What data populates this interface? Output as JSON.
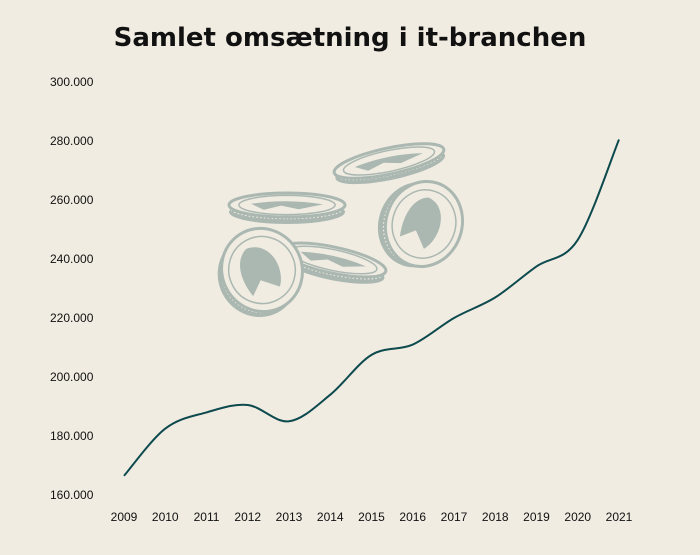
{
  "chart_data": {
    "type": "line",
    "title": "Samlet omsætning i it-branchen",
    "xlabel": "",
    "ylabel": "",
    "x": [
      "2009",
      "2010",
      "2011",
      "2012",
      "2013",
      "2014",
      "2015",
      "2016",
      "2017",
      "2018",
      "2019",
      "2020",
      "2021"
    ],
    "series": [
      {
        "values": [
          166500,
          182500,
          188000,
          190500,
          185000,
          194000,
          207500,
          211000,
          220000,
          227000,
          237500,
          246500,
          280500
        ]
      }
    ],
    "ylim": [
      160000,
      300000
    ],
    "yticks": [
      160000,
      180000,
      200000,
      220000,
      240000,
      260000,
      280000,
      300000
    ],
    "ytick_labels": [
      "160.000",
      "180.000",
      "200.000",
      "220.000",
      "240.000",
      "260.000",
      "280.000",
      "300.000"
    ],
    "grid": false,
    "line_color": "#0d4a4e",
    "decoration_color": "#aab8b1",
    "decoration_icon": "coins-icon"
  }
}
